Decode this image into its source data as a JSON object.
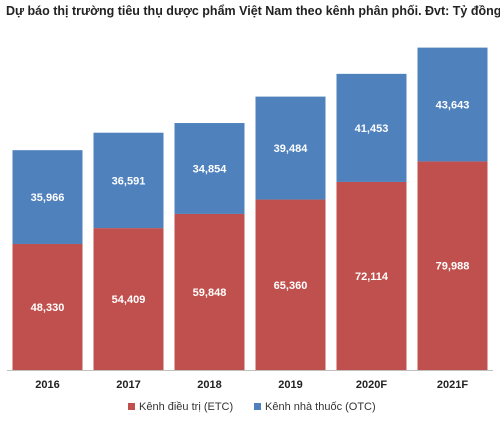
{
  "chart_data": {
    "type": "bar",
    "stacked": true,
    "title": "Dự báo thị trường tiêu thụ dược phẩm Việt Nam theo kênh phân phối. Đvt: Tỷ đồng",
    "categories": [
      "2016",
      "2017",
      "2018",
      "2019",
      "2020F",
      "2021F"
    ],
    "series": [
      {
        "name": "Kênh điều trị (ETC)",
        "values": [
          48330,
          54409,
          59848,
          65360,
          72114,
          79988
        ],
        "labels": [
          "48,330",
          "54,409",
          "59,848",
          "65,360",
          "72,114",
          "79,988"
        ],
        "color": "#c0504d"
      },
      {
        "name": "Kênh nhà thuốc (OTC)",
        "values": [
          35966,
          36591,
          34854,
          39484,
          41453,
          43643
        ],
        "labels": [
          "35,966",
          "36,591",
          "34,854",
          "39,484",
          "41,453",
          "43,643"
        ],
        "color": "#4f81bd"
      }
    ],
    "ylim": [
      0,
      130000
    ],
    "grid": false,
    "legend_position": "bottom"
  }
}
